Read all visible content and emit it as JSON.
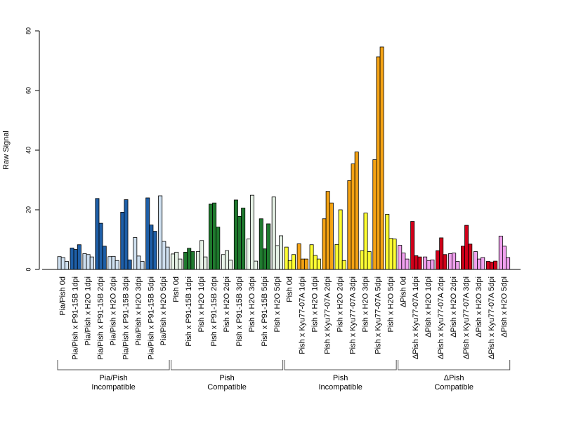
{
  "chart_data": {
    "type": "bar",
    "title": "",
    "ylabel": "Raw Signal",
    "ylim": [
      0,
      80
    ],
    "yticks": [
      0,
      20,
      40,
      60,
      80
    ],
    "grid": false,
    "bars_per_category": 3,
    "categories": [
      {
        "label": "Pia/Pish 0d",
        "color": "#cfe0f0",
        "values": [
          4.3,
          4.0,
          2.7
        ]
      },
      {
        "label": "Pia/Pish x P91-15B 1dpi",
        "color": "#1e5fa8",
        "values": [
          7.2,
          6.7,
          8.3
        ]
      },
      {
        "label": "Pia/Pish x H2O 1dpi",
        "color": "#cfe0f0",
        "values": [
          5.3,
          5.0,
          4.2
        ]
      },
      {
        "label": "Pia/Pish x P91-15B 2dpi",
        "color": "#1e5fa8",
        "values": [
          23.8,
          15.5,
          7.8
        ]
      },
      {
        "label": "Pia/Pish x H2O 2dpi",
        "color": "#cfe0f0",
        "values": [
          4.3,
          4.4,
          3.0
        ]
      },
      {
        "label": "Pia/Pish x P91-15B 3dpi",
        "color": "#1e5fa8",
        "values": [
          19.2,
          23.4,
          3.2
        ]
      },
      {
        "label": "Pia/Pish x H2O 3dpi",
        "color": "#cfe0f0",
        "values": [
          10.7,
          4.5,
          2.7
        ]
      },
      {
        "label": "Pia/Pish x P91-15B 5dpi",
        "color": "#1e5fa8",
        "values": [
          24.0,
          14.9,
          12.8
        ]
      },
      {
        "label": "Pia/Pish x H2O 5dpi",
        "color": "#cfe0f0",
        "values": [
          24.7,
          9.4,
          7.5
        ]
      },
      {
        "label": "Pish 0d",
        "color": "#e6f2e6",
        "values": [
          5.2,
          5.8,
          3.5
        ]
      },
      {
        "label": "Pish x P91-15B 1dpi",
        "color": "#1f7a2e",
        "values": [
          5.8,
          7.1,
          6.0
        ]
      },
      {
        "label": "Pish x H2O 1dpi",
        "color": "#e6f2e6",
        "values": [
          6.0,
          9.7,
          4.2
        ]
      },
      {
        "label": "Pish x P91-15B 2dpi",
        "color": "#1f7a2e",
        "values": [
          21.9,
          22.3,
          14.2
        ]
      },
      {
        "label": "Pish x H2O 2dpi",
        "color": "#e6f2e6",
        "values": [
          5.0,
          6.3,
          3.1
        ]
      },
      {
        "label": "Pish x P91-15B 3dpi",
        "color": "#1f7a2e",
        "values": [
          23.3,
          17.8,
          20.6
        ]
      },
      {
        "label": "Pish x H2O 3dpi",
        "color": "#e6f2e6",
        "values": [
          10.2,
          24.9,
          2.8
        ]
      },
      {
        "label": "Pish x P91-15B 5dpi",
        "color": "#1f7a2e",
        "values": [
          17.0,
          6.9,
          15.3
        ]
      },
      {
        "label": "Pish x H2O 5dpi",
        "color": "#e6f2e6",
        "values": [
          24.3,
          8.0,
          11.3
        ]
      },
      {
        "label": "Pish 0d",
        "color": "#ffff33",
        "values": [
          7.5,
          3.0,
          5.0
        ]
      },
      {
        "label": "Pish x Kyu77-07A 1dpi",
        "color": "#f5a314",
        "values": [
          8.6,
          3.5,
          3.5
        ]
      },
      {
        "label": "Pish x H2O 1dpi",
        "color": "#ffff33",
        "values": [
          8.3,
          4.7,
          3.5
        ]
      },
      {
        "label": "Pish x Kyu77-07A 2dpi",
        "color": "#f5a314",
        "values": [
          17.0,
          26.2,
          22.3
        ]
      },
      {
        "label": "Pish x H2O 2dpi",
        "color": "#ffff33",
        "values": [
          8.4,
          20.0,
          3.0
        ]
      },
      {
        "label": "Pish x Kyu77-07A 3dpi",
        "color": "#f5a314",
        "values": [
          29.8,
          35.4,
          39.4
        ]
      },
      {
        "label": "Pish x H2O 3dpi",
        "color": "#ffff33",
        "values": [
          6.3,
          18.9,
          6.0
        ]
      },
      {
        "label": "Pish x Kyu77-07A 5dpi",
        "color": "#f5a314",
        "values": [
          36.8,
          71.3,
          74.6
        ]
      },
      {
        "label": "Pish x H2O 5dpi",
        "color": "#ffff33",
        "values": [
          18.5,
          10.4,
          10.2
        ]
      },
      {
        "label": "ΔPish 0d",
        "color": "#f0a0ee",
        "values": [
          8.1,
          5.5,
          3.5
        ]
      },
      {
        "label": "ΔPish x Kyu77-07A 1dpi",
        "color": "#d0001a",
        "values": [
          16.1,
          4.6,
          4.2
        ]
      },
      {
        "label": "ΔPish x H2O 1dpi",
        "color": "#f0a0ee",
        "values": [
          4.2,
          3.0,
          3.2
        ]
      },
      {
        "label": "ΔPish x Kyu77-07A 2dpi",
        "color": "#d0001a",
        "values": [
          6.3,
          10.6,
          5.0
        ]
      },
      {
        "label": "ΔPish x H2O 2dpi",
        "color": "#f0a0ee",
        "values": [
          5.3,
          5.5,
          2.7
        ]
      },
      {
        "label": "ΔPish x Kyu77-07A 3dpi",
        "color": "#d0001a",
        "values": [
          7.8,
          14.8,
          8.5
        ]
      },
      {
        "label": "ΔPish x H2O 3dpi",
        "color": "#f0a0ee",
        "values": [
          6.0,
          3.5,
          4.0
        ]
      },
      {
        "label": "ΔPish x Kyu77-07A 5dpi",
        "color": "#d0001a",
        "values": [
          2.7,
          2.5,
          2.8
        ]
      },
      {
        "label": "ΔPish x H2O 5dpi",
        "color": "#f0a0ee",
        "values": [
          11.2,
          7.8,
          4.0
        ]
      }
    ],
    "groups": [
      {
        "line1": "Pia/Pish",
        "line2": "Incompatible",
        "first_category": 0,
        "last_category": 8
      },
      {
        "line1": "Pish",
        "line2": "Compatible",
        "first_category": 9,
        "last_category": 17
      },
      {
        "line1": "Pish",
        "line2": "Incompatible",
        "first_category": 18,
        "last_category": 26
      },
      {
        "line1": "ΔPish",
        "line2": "Compatible",
        "first_category": 27,
        "last_category": 35
      }
    ]
  }
}
